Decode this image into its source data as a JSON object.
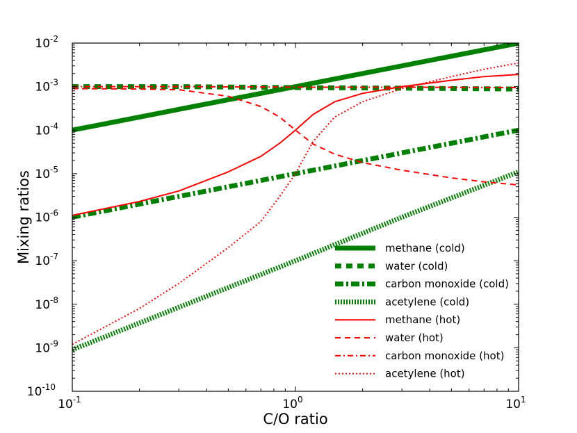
{
  "chart_data": {
    "type": "line",
    "xlabel": "C/O ratio",
    "ylabel": "Mixing ratios",
    "xscale": "log",
    "yscale": "log",
    "xlim": [
      0.1,
      10
    ],
    "ylim": [
      1e-10,
      0.01
    ],
    "legend_position": "lower-right",
    "grid": false,
    "xticks": [
      {
        "base": "10",
        "exp": "-1",
        "value": 0.1
      },
      {
        "base": "10",
        "exp": "0",
        "value": 1
      },
      {
        "base": "10",
        "exp": "1",
        "value": 10
      }
    ],
    "yticks": [
      {
        "base": "10",
        "exp": "-10",
        "value": 1e-10
      },
      {
        "base": "10",
        "exp": "-9",
        "value": 1e-09
      },
      {
        "base": "10",
        "exp": "-8",
        "value": 1e-08
      },
      {
        "base": "10",
        "exp": "-7",
        "value": 1e-07
      },
      {
        "base": "10",
        "exp": "-6",
        "value": 1e-06
      },
      {
        "base": "10",
        "exp": "-5",
        "value": 1e-05
      },
      {
        "base": "10",
        "exp": "-4",
        "value": 0.0001
      },
      {
        "base": "10",
        "exp": "-3",
        "value": 0.001
      },
      {
        "base": "10",
        "exp": "-2",
        "value": 0.01
      }
    ],
    "series": [
      {
        "name": "methane (cold)",
        "color": "#008000",
        "style": "solid",
        "weight": "thick",
        "x": [
          0.1,
          0.3,
          1,
          3,
          10
        ],
        "y": [
          0.0001,
          0.0003,
          0.001,
          0.003,
          0.01
        ]
      },
      {
        "name": "water (cold)",
        "color": "#008000",
        "style": "dashed",
        "weight": "thick",
        "x": [
          0.1,
          0.3,
          1,
          3,
          10
        ],
        "y": [
          0.001,
          0.001,
          0.00095,
          0.00092,
          0.00088
        ]
      },
      {
        "name": "carbon monoxide (cold)",
        "color": "#008000",
        "style": "dashdot",
        "weight": "thick",
        "x": [
          0.1,
          0.3,
          1,
          3,
          10
        ],
        "y": [
          1e-06,
          3e-06,
          1e-05,
          3e-05,
          0.0001
        ]
      },
      {
        "name": "acetylene (cold)",
        "color": "#008000",
        "style": "dotted",
        "weight": "thick",
        "x": [
          0.1,
          0.3,
          1,
          3,
          10
        ],
        "y": [
          9e-10,
          8.5e-09,
          1e-07,
          1e-06,
          1.1e-05
        ]
      },
      {
        "name": "methane (hot)",
        "color": "#ff0000",
        "style": "solid",
        "weight": "thin",
        "x": [
          0.1,
          0.2,
          0.3,
          0.5,
          0.7,
          0.85,
          1.0,
          1.2,
          1.5,
          2,
          3,
          5,
          7,
          10
        ],
        "y": [
          1.1e-06,
          2.3e-06,
          4e-06,
          1.1e-05,
          2.5e-05,
          5e-05,
          0.0001,
          0.00023,
          0.00045,
          0.0007,
          0.001,
          0.0014,
          0.0017,
          0.0019
        ]
      },
      {
        "name": "water (hot)",
        "color": "#ff0000",
        "style": "dashed",
        "weight": "thin",
        "x": [
          0.1,
          0.2,
          0.3,
          0.5,
          0.7,
          0.85,
          1.0,
          1.2,
          1.5,
          2,
          3,
          5,
          7,
          10
        ],
        "y": [
          0.0009,
          0.00088,
          0.00085,
          0.0006,
          0.00035,
          0.0002,
          0.0001,
          4.8e-05,
          2.8e-05,
          1.8e-05,
          1.2e-05,
          8e-06,
          6.5e-06,
          5.5e-06
        ]
      },
      {
        "name": "carbon monoxide (hot)",
        "color": "#ff0000",
        "style": "dashdot",
        "weight": "thin",
        "x": [
          0.1,
          0.3,
          1,
          3,
          10
        ],
        "y": [
          0.001,
          0.001,
          0.00097,
          0.00097,
          0.00095
        ]
      },
      {
        "name": "acetylene (hot)",
        "color": "#ff0000",
        "style": "dotted",
        "weight": "thin",
        "x": [
          0.1,
          0.2,
          0.3,
          0.5,
          0.7,
          0.85,
          1.0,
          1.2,
          1.5,
          2,
          3,
          5,
          7,
          10
        ],
        "y": [
          1.2e-09,
          8e-09,
          3e-08,
          2e-07,
          8e-07,
          3e-06,
          1e-05,
          5.5e-05,
          0.0002,
          0.00045,
          0.0009,
          0.0017,
          0.0025,
          0.0035
        ]
      }
    ]
  }
}
